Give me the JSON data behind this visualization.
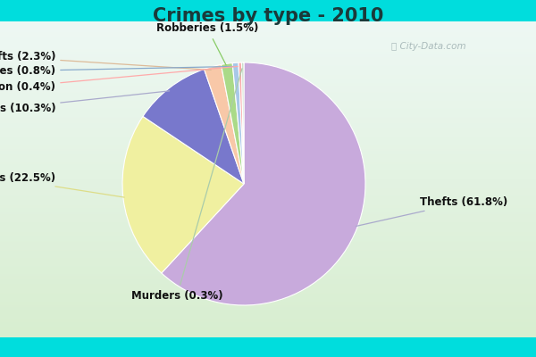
{
  "title": "Crimes by type - 2010",
  "title_fontsize": 15,
  "title_fontweight": "bold",
  "slices": [
    {
      "label": "Thefts",
      "pct": 61.8,
      "color": "#C8AADC"
    },
    {
      "label": "Burglaries",
      "pct": 22.5,
      "color": "#F0F0A0"
    },
    {
      "label": "Assaults",
      "pct": 10.3,
      "color": "#7878CC"
    },
    {
      "label": "Auto thefts",
      "pct": 2.3,
      "color": "#F8C8A8"
    },
    {
      "label": "Robberies",
      "pct": 1.5,
      "color": "#AADA88"
    },
    {
      "label": "Rapes",
      "pct": 0.8,
      "color": "#A8C8E8"
    },
    {
      "label": "Arson",
      "pct": 0.4,
      "color": "#F8A8A8"
    },
    {
      "label": "Murders",
      "pct": 0.3,
      "color": "#C8DCC8"
    }
  ],
  "bg_outer": "#00DDDD",
  "bg_inner_top": "#E8F4F0",
  "bg_inner_bot": "#D0ECC8",
  "label_fontsize": 8.5,
  "label_color": "#111111",
  "watermark": "City-Data.com"
}
